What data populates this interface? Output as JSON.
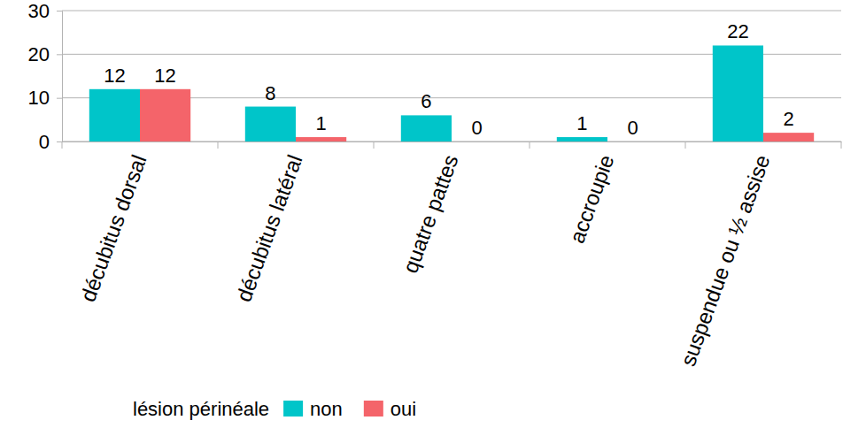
{
  "chart_data": {
    "type": "bar",
    "categories": [
      "décubitus dorsal",
      "décubitus latéral",
      "quatre pattes",
      "accroupie",
      "suspendue ou ½ assise"
    ],
    "series": [
      {
        "name": "non",
        "color": "#00c5c9",
        "values": [
          12,
          8,
          6,
          1,
          22
        ]
      },
      {
        "name": "oui",
        "color": "#f4646a",
        "values": [
          12,
          1,
          0,
          0,
          2
        ]
      }
    ],
    "legend_title": "lésion périnéale",
    "ylim": [
      0,
      30
    ],
    "yticks": [
      0,
      10,
      20,
      30
    ],
    "grid": true,
    "data_labels": true,
    "legend": "bottom"
  }
}
